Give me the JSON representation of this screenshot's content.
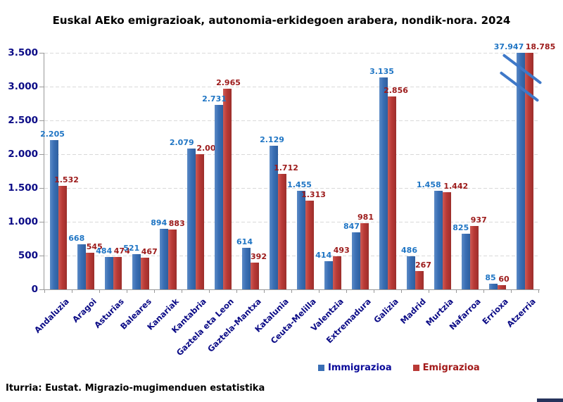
{
  "title": "Euskal AEko emigrazioak, autonomia-erkidegoen arabera, nondik-nora. 2024",
  "source": "Iturria: Eustat. Migrazio-mugimenduen estatistika",
  "colors": {
    "bar_blue": "#3a6fb5",
    "bar_red": "#b93a36",
    "label_blue": "#1f75c4",
    "label_red": "#9c1a1a",
    "axis_navy": "#0b0b86",
    "legend_blue_text": "#0a0a99",
    "legend_red_text": "#a31b1b",
    "grid_gray": "#d9d9d9",
    "axis_gray": "#999999",
    "break_mark_blue": "#3e78c8"
  },
  "chart_data": {
    "type": "bar",
    "title": "Euskal AEko emigrazioak, autonomia-erkidegoen arabera, nondik-nora. 2024",
    "xlabel": "",
    "ylabel": "",
    "ylim": [
      0,
      3500
    ],
    "yticks": [
      "3.500",
      "3.000",
      "2.500",
      "2.000",
      "1.500",
      "1.000",
      "500",
      "0"
    ],
    "grid": "horizontal-dashed",
    "legend_position": "bottom",
    "axis_break_category": "Atzerria",
    "clip_max": 3500,
    "categories": [
      "Andaluzia",
      "Aragoi",
      "Asturias",
      "Baleares",
      "Kanariak",
      "Kantabria",
      "Gaztela eta Leon",
      "Gaztela-Mantxa",
      "Katalunia",
      "Ceuta-Melilla",
      "Valentzia",
      "Extremadura",
      "Galizia",
      "Madrid",
      "Murtzia",
      "Nafarroa",
      "Errioxa",
      "Atzerria"
    ],
    "series": [
      {
        "name": "Immigrazioa",
        "values": [
          2205,
          668,
          484,
          521,
          894,
          2079,
          2731,
          614,
          2129,
          1455,
          414,
          847,
          3135,
          486,
          1458,
          825,
          85,
          37947
        ],
        "labels": [
          "2.205",
          "668",
          "484",
          "521",
          "894",
          "2.079",
          "2.731",
          "614",
          "2.129",
          "1.455",
          "414",
          "847",
          "3.135",
          "486",
          "1.458",
          "825",
          "85",
          "37.947"
        ]
      },
      {
        "name": "Emigrazioa",
        "values": [
          1532,
          545,
          474,
          467,
          883,
          2003,
          2965,
          392,
          1712,
          1313,
          493,
          981,
          2856,
          267,
          1442,
          937,
          60,
          18785
        ],
        "labels": [
          "1.532",
          "545",
          "474",
          "467",
          "883",
          "2.003",
          "2.965",
          "392",
          "1.712",
          "1.313",
          "493",
          "981",
          "2.856",
          "267",
          "1.442",
          "937",
          "60",
          "18.785"
        ]
      }
    ]
  }
}
